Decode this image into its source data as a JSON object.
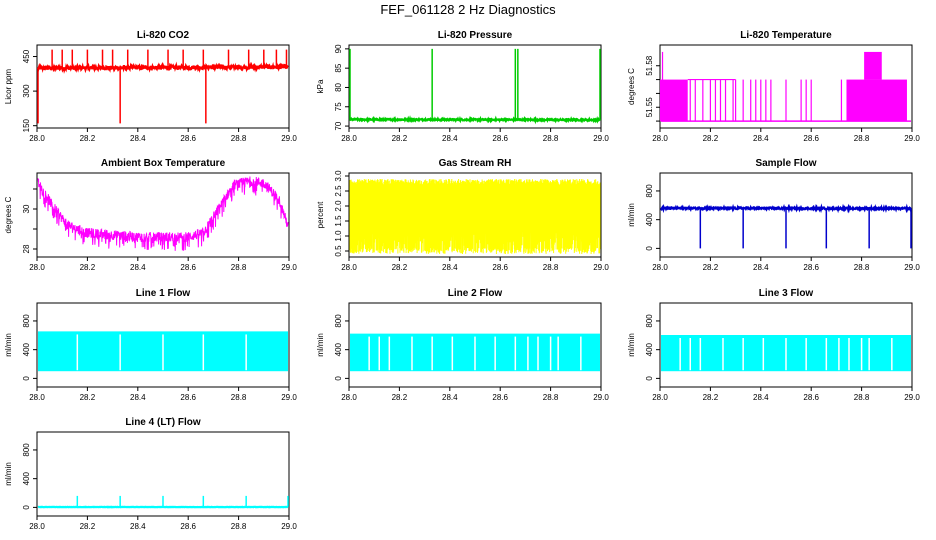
{
  "title": "FEF_061128  2 Hz Diagnostics",
  "chart_data": [
    {
      "type": "line",
      "title": "Li-820 CO2",
      "ylabel": "Licor ppm",
      "color": "#ff0000",
      "xlim": [
        28.0,
        29.0
      ],
      "ylim": [
        140,
        500
      ],
      "xticks": [
        28.0,
        28.2,
        28.4,
        28.6,
        28.8,
        29.0
      ],
      "xtick_labels": [
        "28.0",
        "28.2",
        "28.4",
        "28.6",
        "28.8",
        "29.0"
      ],
      "yticks": [
        150,
        300,
        450
      ],
      "ytick_labels": [
        "150",
        "300",
        "450"
      ],
      "pattern": "baseline_spikes",
      "baseline": [
        400,
        405
      ],
      "noise": 8,
      "spikes_up": [
        28.06,
        28.1,
        28.14,
        28.2,
        28.26,
        28.3,
        28.36,
        28.44,
        28.52,
        28.58,
        28.66,
        28.76,
        28.84,
        28.9,
        28.95,
        28.99
      ],
      "spike_up_top": 480,
      "spikes_down": [
        28.0,
        28.33,
        28.67
      ],
      "spike_down_bottom": 160
    },
    {
      "type": "line",
      "title": "Li-820 Pressure",
      "ylabel": "kPa",
      "color": "#00cc00",
      "xlim": [
        28.0,
        29.0
      ],
      "ylim": [
        69.5,
        91
      ],
      "xticks": [
        28.0,
        28.2,
        28.4,
        28.6,
        28.8,
        29.0
      ],
      "xtick_labels": [
        "28.0",
        "28.2",
        "28.4",
        "28.6",
        "28.8",
        "29.0"
      ],
      "yticks": [
        70,
        75,
        80,
        85,
        90
      ],
      "ytick_labels": [
        "70",
        "75",
        "80",
        "85",
        "90"
      ],
      "pattern": "baseline_spikes",
      "baseline": [
        71.7,
        71.6
      ],
      "noise": 0.2,
      "spikes_up": [
        28.0,
        28.33,
        28.66,
        28.67,
        29.0
      ],
      "spike_up_top": 90,
      "spikes_down": [],
      "spike_down_bottom": 71
    },
    {
      "type": "line",
      "title": "Li-820 Temperature",
      "ylabel": "degrees C",
      "color": "#ff00ff",
      "xlim": [
        28.0,
        29.0
      ],
      "ylim": [
        51.535,
        51.595
      ],
      "xticks": [
        28.0,
        28.2,
        28.4,
        28.6,
        28.8,
        29.0
      ],
      "xtick_labels": [
        "28.0",
        "28.2",
        "28.4",
        "28.6",
        "28.8",
        "29.0"
      ],
      "yticks": [
        51.55,
        51.58
      ],
      "ytick_labels": [
        "51.55",
        "51.58"
      ],
      "minor_yticks": [
        51.54,
        51.56,
        51.57
      ],
      "pattern": "digital_temperature",
      "levels": [
        51.54,
        51.57,
        51.59
      ]
    },
    {
      "type": "line",
      "title": "Ambient Box Temperature",
      "ylabel": "degrees C",
      "color": "#ff00ff",
      "xlim": [
        28.0,
        29.0
      ],
      "ylim": [
        27.6,
        31.8
      ],
      "xticks": [
        28.0,
        28.2,
        28.4,
        28.6,
        28.8,
        29.0
      ],
      "xtick_labels": [
        "28.0",
        "28.2",
        "28.4",
        "28.6",
        "28.8",
        "29.0"
      ],
      "yticks": [
        28,
        30
      ],
      "ytick_labels": [
        "28",
        "30"
      ],
      "minor_yticks": [
        29,
        31
      ],
      "pattern": "curve_band",
      "curve": [
        [
          28.0,
          31.4
        ],
        [
          28.06,
          30.2
        ],
        [
          28.12,
          29.2
        ],
        [
          28.2,
          28.8
        ],
        [
          28.3,
          28.7
        ],
        [
          28.4,
          28.6
        ],
        [
          28.5,
          28.6
        ],
        [
          28.6,
          28.6
        ],
        [
          28.66,
          28.8
        ],
        [
          28.72,
          30.0
        ],
        [
          28.78,
          31.2
        ],
        [
          28.85,
          31.4
        ],
        [
          28.9,
          31.3
        ],
        [
          28.96,
          30.5
        ],
        [
          29.0,
          29.0
        ]
      ],
      "band": 0.25,
      "drop": 0.7
    },
    {
      "type": "line",
      "title": "Gas Stream RH",
      "ylabel": "percent",
      "color": "#ffff00",
      "xlim": [
        28.0,
        29.0
      ],
      "ylim": [
        0.3,
        3.1
      ],
      "xticks": [
        28.0,
        28.2,
        28.4,
        28.6,
        28.8,
        29.0
      ],
      "xtick_labels": [
        "28.0",
        "28.2",
        "28.4",
        "28.6",
        "28.8",
        "29.0"
      ],
      "yticks": [
        0.5,
        1.0,
        1.5,
        2.0,
        2.5,
        3.0
      ],
      "ytick_labels": [
        "0.5",
        "1.0",
        "1.5",
        "2.0",
        "2.5",
        "3.0"
      ],
      "pattern": "dense_band",
      "band_top": [
        2.7,
        2.9
      ],
      "band_bottom": [
        0.4,
        0.6
      ]
    },
    {
      "type": "line",
      "title": "Sample Flow",
      "ylabel": "ml/min",
      "color": "#0000cc",
      "xlim": [
        28.0,
        29.0
      ],
      "ylim": [
        -120,
        1050
      ],
      "xticks": [
        28.0,
        28.2,
        28.4,
        28.6,
        28.8,
        29.0
      ],
      "xtick_labels": [
        "28.0",
        "28.2",
        "28.4",
        "28.6",
        "28.8",
        "29.0"
      ],
      "yticks": [
        0,
        400,
        800
      ],
      "ytick_labels": [
        "0",
        "400",
        "800"
      ],
      "pattern": "baseline_spikes",
      "baseline": [
        560,
        555
      ],
      "noise": 12,
      "spikes_up": [],
      "spike_up_top": 600,
      "spikes_down": [
        28.16,
        28.33,
        28.5,
        28.66,
        28.83,
        29.0
      ],
      "spike_down_bottom": 0
    },
    {
      "type": "line",
      "title": "Line 1 Flow",
      "ylabel": "ml/min",
      "color": "#00ffff",
      "xlim": [
        28.0,
        29.0
      ],
      "ylim": [
        -120,
        1050
      ],
      "xticks": [
        28.0,
        28.2,
        28.4,
        28.6,
        28.8,
        29.0
      ],
      "xtick_labels": [
        "28.0",
        "28.2",
        "28.4",
        "28.6",
        "28.8",
        "29.0"
      ],
      "yticks": [
        0,
        400,
        800
      ],
      "ytick_labels": [
        "0",
        "400",
        "800"
      ],
      "pattern": "flow_block",
      "top": 640,
      "bottom": 100,
      "gaps": [
        28.16,
        28.33,
        28.5,
        28.66,
        28.83
      ]
    },
    {
      "type": "line",
      "title": "Line 2 Flow",
      "ylabel": "ml/min",
      "color": "#00ffff",
      "xlim": [
        28.0,
        29.0
      ],
      "ylim": [
        -120,
        1050
      ],
      "xticks": [
        28.0,
        28.2,
        28.4,
        28.6,
        28.8,
        29.0
      ],
      "xtick_labels": [
        "28.0",
        "28.2",
        "28.4",
        "28.6",
        "28.8",
        "29.0"
      ],
      "yticks": [
        0,
        400,
        800
      ],
      "ytick_labels": [
        "0",
        "400",
        "800"
      ],
      "pattern": "flow_block",
      "top": 610,
      "bottom": 100,
      "gaps": [
        28.08,
        28.12,
        28.16,
        28.25,
        28.33,
        28.41,
        28.5,
        28.58,
        28.66,
        28.71,
        28.75,
        28.8,
        28.83,
        28.92
      ]
    },
    {
      "type": "line",
      "title": "Line 3 Flow",
      "ylabel": "ml/min",
      "color": "#00ffff",
      "xlim": [
        28.0,
        29.0
      ],
      "ylim": [
        -120,
        1050
      ],
      "xticks": [
        28.0,
        28.2,
        28.4,
        28.6,
        28.8,
        29.0
      ],
      "xtick_labels": [
        "28.0",
        "28.2",
        "28.4",
        "28.6",
        "28.8",
        "29.0"
      ],
      "yticks": [
        0,
        400,
        800
      ],
      "ytick_labels": [
        "0",
        "400",
        "800"
      ],
      "pattern": "flow_block",
      "top": 590,
      "bottom": 100,
      "gaps": [
        28.08,
        28.12,
        28.16,
        28.25,
        28.33,
        28.41,
        28.5,
        28.58,
        28.66,
        28.71,
        28.75,
        28.8,
        28.83,
        28.92
      ]
    },
    {
      "type": "line",
      "title": "Line 4 (LT) Flow",
      "ylabel": "ml/min",
      "color": "#00ffff",
      "xlim": [
        28.0,
        29.0
      ],
      "ylim": [
        -120,
        1050
      ],
      "xticks": [
        28.0,
        28.2,
        28.4,
        28.6,
        28.8,
        29.0
      ],
      "xtick_labels": [
        "28.0",
        "28.2",
        "28.4",
        "28.6",
        "28.8",
        "29.0"
      ],
      "yticks": [
        0,
        400,
        800
      ],
      "ytick_labels": [
        "0",
        "400",
        "800"
      ],
      "pattern": "baseline_spikes",
      "baseline": [
        5,
        5
      ],
      "noise": 2,
      "spikes_up": [
        28.16,
        28.33,
        28.5,
        28.66,
        28.83,
        29.0
      ],
      "spike_up_top": 160,
      "spikes_down": [],
      "spike_down_bottom": 0
    }
  ]
}
